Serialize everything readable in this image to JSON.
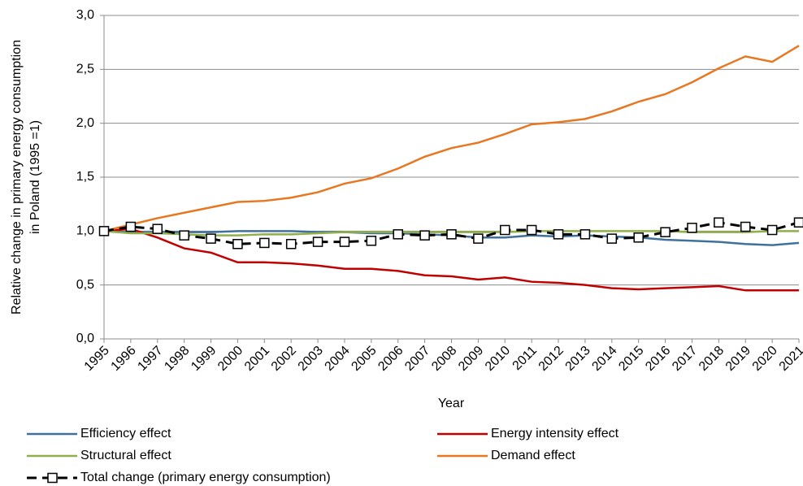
{
  "chart_data": {
    "type": "line",
    "ylabel": [
      "Relative change in primary energy consumption",
      "in Poland (1995 =1)"
    ],
    "xlabel": "Year",
    "categories": [
      "1995",
      "1996",
      "1997",
      "1998",
      "1999",
      "2000",
      "2001",
      "2002",
      "2003",
      "2004",
      "2005",
      "2006",
      "2007",
      "2008",
      "2009",
      "2010",
      "2011",
      "2012",
      "2013",
      "2014",
      "2015",
      "2016",
      "2017",
      "2018",
      "2019",
      "2020",
      "2021"
    ],
    "ylim": [
      0,
      3
    ],
    "yticks": [
      {
        "value": 0,
        "label": "0,0"
      },
      {
        "value": 0.5,
        "label": "0,5"
      },
      {
        "value": 1,
        "label": "1,0"
      },
      {
        "value": 1.5,
        "label": "1,5"
      },
      {
        "value": 2,
        "label": "2,0"
      },
      {
        "value": 2.5,
        "label": "2,5"
      },
      {
        "value": 3,
        "label": "3,0"
      }
    ],
    "grid": true,
    "series": [
      {
        "name": "Efficiency effect",
        "color": "#41709c",
        "values": [
          1.0,
          0.99,
          0.99,
          0.99,
          0.99,
          1.0,
          1.0,
          1.0,
          0.99,
          0.99,
          0.98,
          0.98,
          0.97,
          0.96,
          0.94,
          0.94,
          0.96,
          0.95,
          0.96,
          0.95,
          0.94,
          0.92,
          0.91,
          0.9,
          0.88,
          0.87,
          0.89
        ]
      },
      {
        "name": "Energy intensity effect",
        "color": "#c00000",
        "values": [
          1.0,
          1.02,
          0.94,
          0.84,
          0.8,
          0.71,
          0.71,
          0.7,
          0.68,
          0.65,
          0.65,
          0.63,
          0.59,
          0.58,
          0.55,
          0.57,
          0.53,
          0.52,
          0.5,
          0.47,
          0.46,
          0.47,
          0.48,
          0.49,
          0.45,
          0.45,
          0.45
        ]
      },
      {
        "name": "Structural effect",
        "color": "#8faf4a",
        "values": [
          1.0,
          0.98,
          0.98,
          0.97,
          0.96,
          0.96,
          0.97,
          0.97,
          0.98,
          0.99,
          0.99,
          0.99,
          0.99,
          0.99,
          0.99,
          0.99,
          1.0,
          1.0,
          1.0,
          1.0,
          1.0,
          1.0,
          0.99,
          0.99,
          0.99,
          1.0,
          1.0
        ]
      },
      {
        "name": "Demand effect",
        "color": "#e87722",
        "values": [
          1.0,
          1.06,
          1.12,
          1.17,
          1.22,
          1.27,
          1.28,
          1.31,
          1.36,
          1.44,
          1.49,
          1.58,
          1.69,
          1.77,
          1.82,
          1.9,
          1.99,
          2.01,
          2.04,
          2.11,
          2.2,
          2.27,
          2.38,
          2.51,
          2.62,
          2.57,
          2.72
        ]
      },
      {
        "name": "Total change (primary energy consumption)",
        "color": "#000000",
        "dashed": true,
        "marker": "square",
        "values": [
          1.0,
          1.04,
          1.02,
          0.96,
          0.93,
          0.88,
          0.89,
          0.88,
          0.9,
          0.9,
          0.91,
          0.97,
          0.96,
          0.97,
          0.93,
          1.01,
          1.01,
          0.97,
          0.97,
          0.93,
          0.94,
          0.99,
          1.03,
          1.08,
          1.04,
          1.01,
          1.08
        ]
      }
    ]
  }
}
